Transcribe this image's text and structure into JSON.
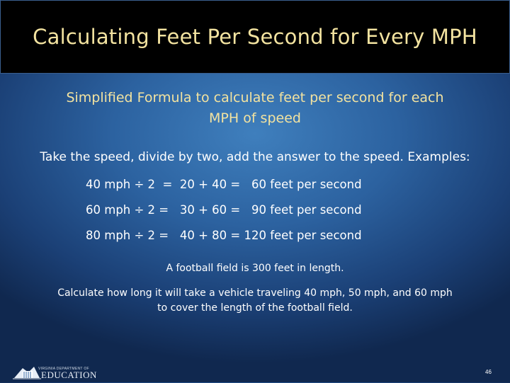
{
  "slide": {
    "title": "Calculating Feet Per Second for Every MPH",
    "subtitle": "Simplified Formula to calculate feet per second for each MPH of speed",
    "intro": "Take the speed, divide by two, add the answer to the speed.  Examples:",
    "examples": [
      "40 mph ÷ 2  =  20 + 40 =   60 feet per second",
      "60 mph ÷ 2 =   30 + 60 =   90 feet per second",
      "80 mph ÷ 2 =   40 + 80 = 120 feet per second"
    ],
    "note": "A football field is 300 feet in length.",
    "task": "Calculate how long it will take a vehicle traveling 40 mph, 50 mph, and 60 mph to cover the length of the football field.",
    "page_number": "46"
  },
  "logo": {
    "state_text": "VIRGINIA DEPARTMENT OF",
    "org_text": "EDUCATION"
  },
  "colors": {
    "title": "#f3e3a0",
    "body_text": "#ffffff",
    "background": "#2c62a0"
  }
}
